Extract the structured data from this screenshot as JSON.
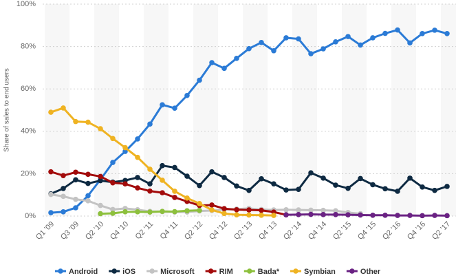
{
  "chart_data": {
    "type": "line",
    "y_label": "Share of sales to end users",
    "categories": [
      "Q1 '09",
      null,
      "Q3 '09",
      null,
      "Q2 '10",
      null,
      "Q4 '10",
      null,
      "Q2 '11",
      null,
      "Q4 '11",
      null,
      "Q2 '12",
      null,
      "Q4 '12",
      null,
      "Q2 '13",
      null,
      "Q4 '13",
      null,
      "Q2 '14",
      null,
      "Q4 '14",
      null,
      "Q2 '15",
      null,
      "Q4 '15",
      null,
      "Q2 '16",
      null,
      "Q4 '16",
      null,
      "Q2 '17"
    ],
    "ylim": [
      0,
      100
    ],
    "yticks": [
      {
        "value": 0,
        "label": "0%"
      },
      {
        "value": 20,
        "label": "20%"
      },
      {
        "value": 40,
        "label": "40%"
      },
      {
        "value": 60,
        "label": "60%"
      },
      {
        "value": 80,
        "label": "80%"
      },
      {
        "value": 100,
        "label": "100%"
      }
    ],
    "grid": true,
    "legend": "bottom",
    "series": [
      {
        "name": "Android",
        "color": "#2b7bd6",
        "values": [
          1.6,
          2,
          3.9,
          9.6,
          17.2,
          25.3,
          30.5,
          36.4,
          43.4,
          52.5,
          50.9,
          56.9,
          64.1,
          72.4,
          69.7,
          74.4,
          79,
          81.9,
          78,
          84.1,
          83.6,
          76.6,
          78.9,
          82.2,
          84.7,
          80.7,
          84.1,
          86.2,
          87.8,
          81.7,
          86.1,
          87.7,
          86.1
        ]
      },
      {
        "name": "iOS",
        "color": "#0e2a42",
        "values": [
          10.5,
          13,
          17.1,
          15.4,
          16.7,
          16,
          16.8,
          18.2,
          15.2,
          23.8,
          22.9,
          18.8,
          14.4,
          20.9,
          18.2,
          14.2,
          12.1,
          17.6,
          15.2,
          12.3,
          12.6,
          20.4,
          17.9,
          14.6,
          13.1,
          17.7,
          14.8,
          12.9,
          11.7,
          17.9,
          13.7,
          12.1,
          14
        ]
      },
      {
        "name": "Microsoft",
        "color": "#c3c3c3",
        "values": [
          10.2,
          9.3,
          7.9,
          7.2,
          5,
          3.1,
          3.6,
          3,
          2.2,
          2.1,
          1.9,
          1.9,
          2.4,
          2.6,
          3,
          3.3,
          3.6,
          3.1,
          2.9,
          3,
          2.9,
          2.8,
          2.7,
          2.5,
          1.7,
          1.1,
          null,
          null,
          null,
          null,
          null,
          null,
          null
        ]
      },
      {
        "name": "RIM",
        "color": "#a30b0b",
        "values": [
          20.9,
          19.1,
          20.7,
          19.7,
          18.7,
          15.7,
          15.2,
          13.3,
          11.8,
          11,
          8.8,
          6.9,
          5,
          5.2,
          3.5,
          3,
          2.9,
          2.7,
          1.9,
          0.6,
          null,
          null,
          null,
          null,
          null,
          null,
          null,
          null,
          null,
          null,
          null,
          null,
          null
        ]
      },
      {
        "name": "Bada*",
        "color": "#8dc03d",
        "values": [
          null,
          null,
          null,
          null,
          1.1,
          1.3,
          2,
          2,
          1.9,
          2.2,
          2.1,
          2.5,
          2.7,
          null,
          null,
          null,
          null,
          null,
          null,
          null,
          null,
          null,
          null,
          null,
          null,
          null,
          null,
          null,
          null,
          null,
          null,
          null,
          null
        ]
      },
      {
        "name": "Symbian",
        "color": "#efb322",
        "values": [
          49,
          51,
          44.6,
          44.3,
          41.2,
          36.6,
          32.3,
          27.7,
          22.1,
          16.9,
          11.7,
          8.5,
          5.9,
          2.9,
          1.2,
          0.6,
          0.5,
          0.4,
          0.3,
          null,
          null,
          null,
          null,
          null,
          null,
          null,
          null,
          null,
          null,
          null,
          null,
          null,
          null
        ]
      },
      {
        "name": "Other",
        "color": "#6a2283",
        "values": [
          null,
          null,
          null,
          null,
          null,
          null,
          null,
          null,
          null,
          null,
          null,
          null,
          null,
          null,
          null,
          null,
          null,
          null,
          null,
          0.6,
          0.7,
          0.8,
          0.7,
          0.7,
          0.6,
          0.5,
          0.4,
          0.4,
          0.3,
          0.3,
          0.2,
          0.3,
          0.2
        ]
      }
    ]
  }
}
